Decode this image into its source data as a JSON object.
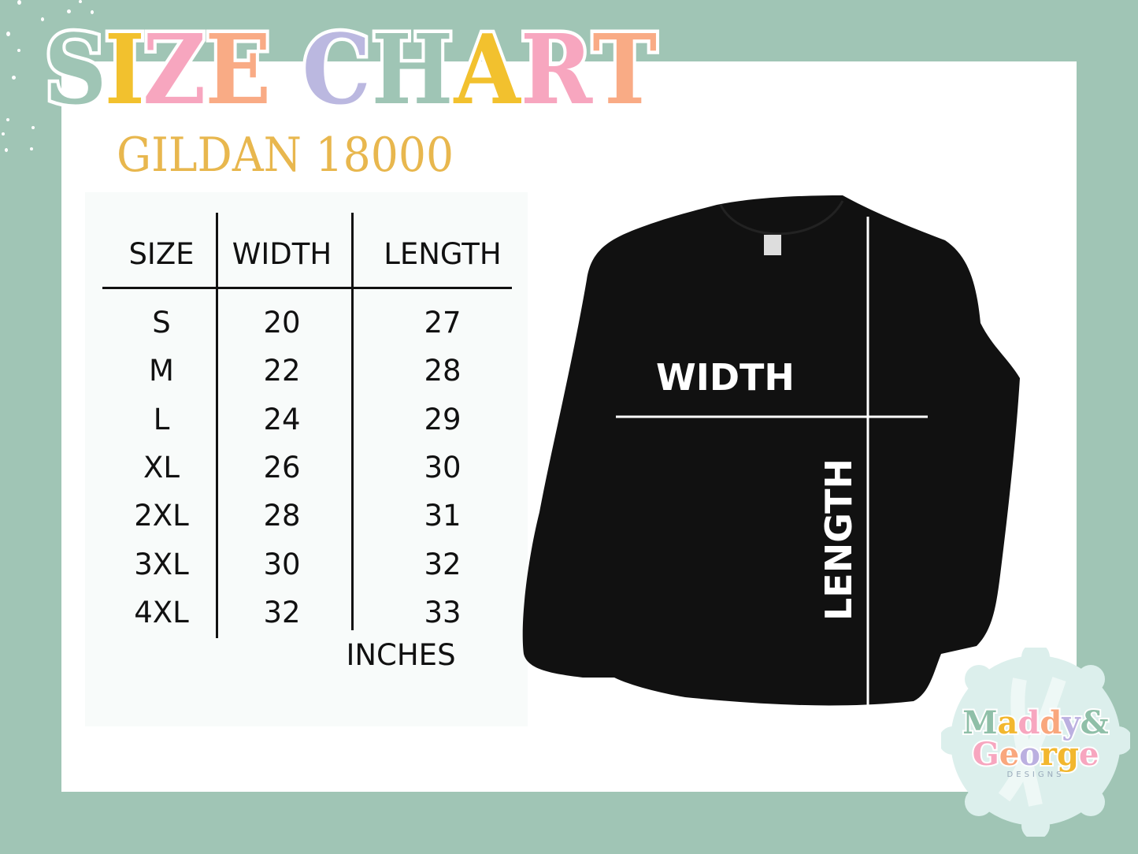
{
  "title": {
    "letters": [
      "S",
      "I",
      "Z",
      "E",
      " ",
      "C",
      "H",
      "A",
      "R",
      "T"
    ],
    "colors": [
      "#9fc5b5",
      "#f2c12e",
      "#f7a6bf",
      "#f9ab85",
      "",
      "#bbb8e0",
      "#9fc5b5",
      "#f2c12e",
      "#f7a6bf",
      "#f9ab85"
    ]
  },
  "subtitle": "GILDAN 18000",
  "table": {
    "headers": [
      "SIZE",
      "WIDTH",
      "LENGTH"
    ],
    "rows": [
      [
        "S",
        "20",
        "27"
      ],
      [
        "M",
        "22",
        "28"
      ],
      [
        "L",
        "24",
        "29"
      ],
      [
        "XL",
        "26",
        "30"
      ],
      [
        "2XL",
        "28",
        "31"
      ],
      [
        "3XL",
        "30",
        "32"
      ],
      [
        "4XL",
        "32",
        "33"
      ]
    ],
    "unit": "INCHES"
  },
  "diagram": {
    "width_label": "WIDTH",
    "length_label": "LENGTH",
    "garment_color": "#111111"
  },
  "logo": {
    "line1": [
      "M",
      "a",
      "d",
      "d",
      "y",
      "&"
    ],
    "line1_colors": [
      "#8fbfa8",
      "#f2b72e",
      "#f7a6bf",
      "#f9a77d",
      "#bbb0e0",
      "#8fbfa8"
    ],
    "line2": [
      "G",
      "e",
      "o",
      "r",
      "g",
      "e"
    ],
    "line2_colors": [
      "#f7a6bf",
      "#f9a77d",
      "#bbb0e0",
      "#f2b72e",
      "#f2b72e",
      "#f7a6bf"
    ],
    "tagline": "DESIGNS"
  },
  "colors": {
    "background": "#a0c5b5",
    "panel": "#ffffff",
    "accent": "#e8b74e"
  }
}
